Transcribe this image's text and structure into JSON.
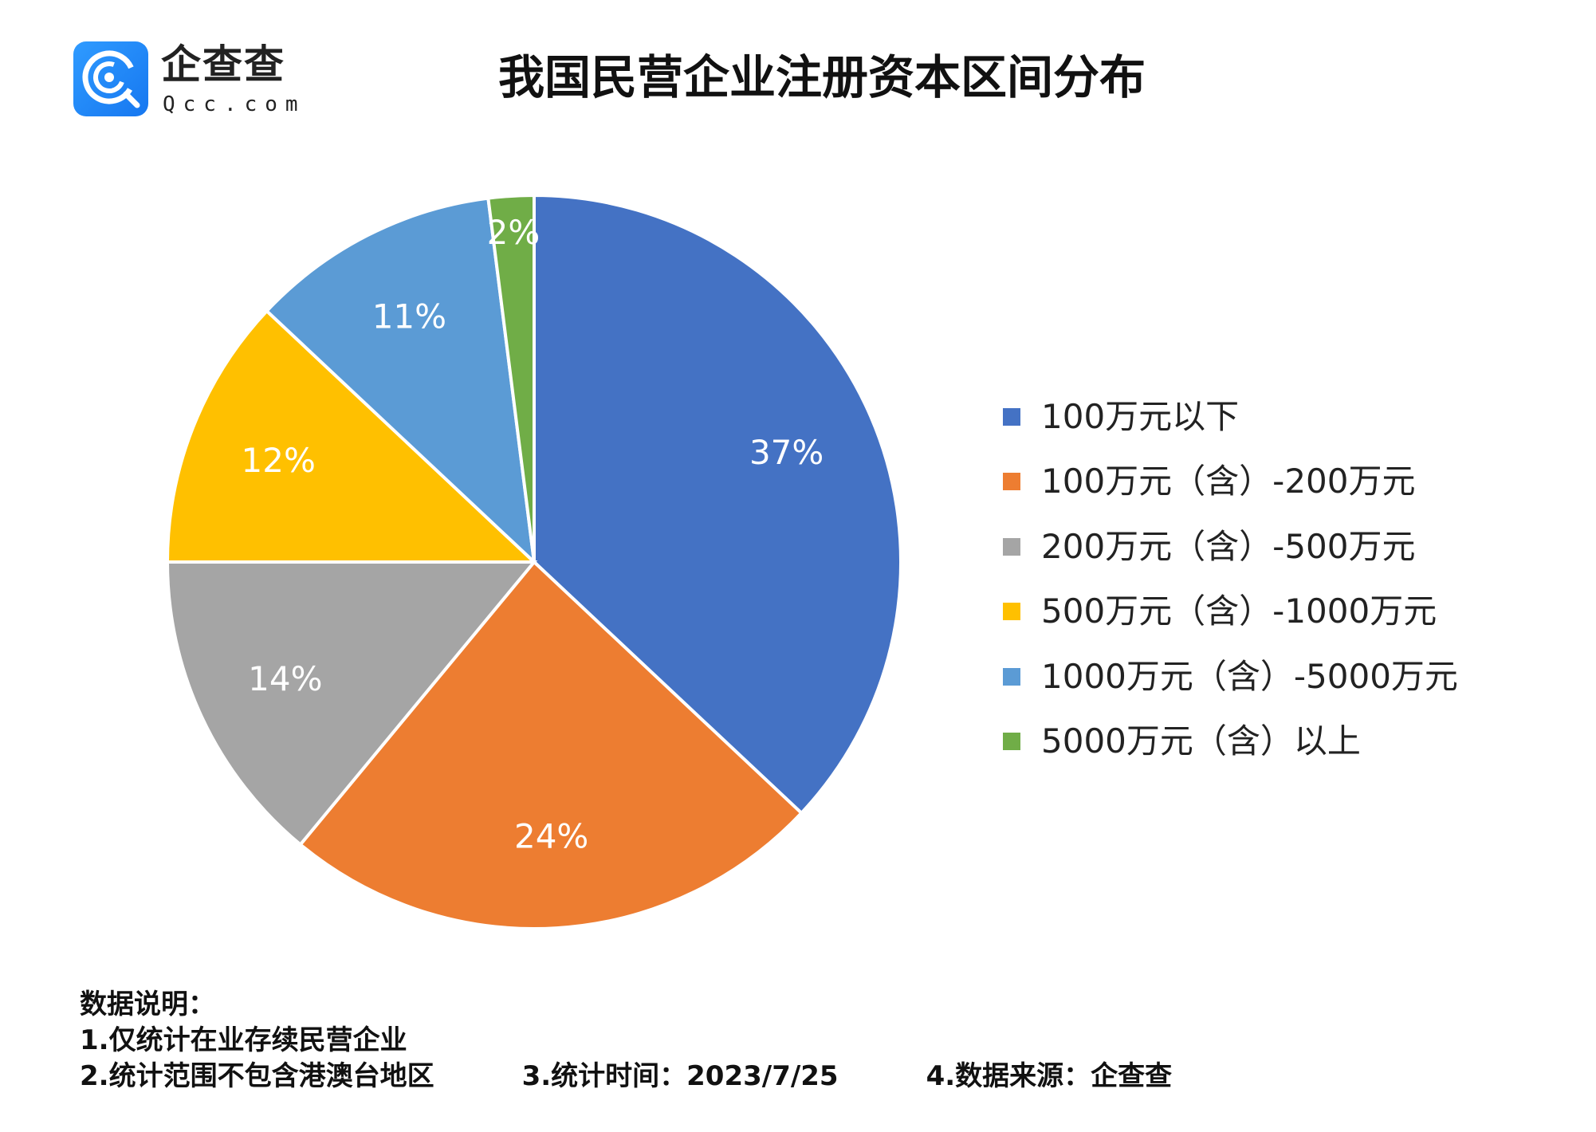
{
  "logo": {
    "cn": "企查查",
    "en": "Qcc.com",
    "color": "#1a7ff5"
  },
  "chart_data": {
    "type": "pie",
    "title": "我国民营企业注册资本区间分布",
    "start": "12 o'clock, clockwise",
    "categories": [
      "100万元以下",
      "100万元（含）-200万元",
      "200万元（含）-500万元",
      "500万元（含）-1000万元",
      "1000万元（含）-5000万元",
      "5000万元（含）以上"
    ],
    "values": [
      37,
      24,
      14,
      12,
      11,
      2
    ],
    "labels": [
      "37%",
      "24%",
      "14%",
      "12%",
      "11%",
      "2%"
    ],
    "colors": [
      "#4472c4",
      "#ed7d31",
      "#a5a5a5",
      "#ffc000",
      "#5b9bd5",
      "#70ad47"
    ],
    "legend_position": "right"
  },
  "notes": {
    "heading": "数据说明：",
    "line1": "1.仅统计在业存续民营企业",
    "item2": "2.统计范围不包含港澳台地区",
    "item3": "3.统计时间：2023/7/25",
    "item4": "4.数据来源：企查查"
  }
}
